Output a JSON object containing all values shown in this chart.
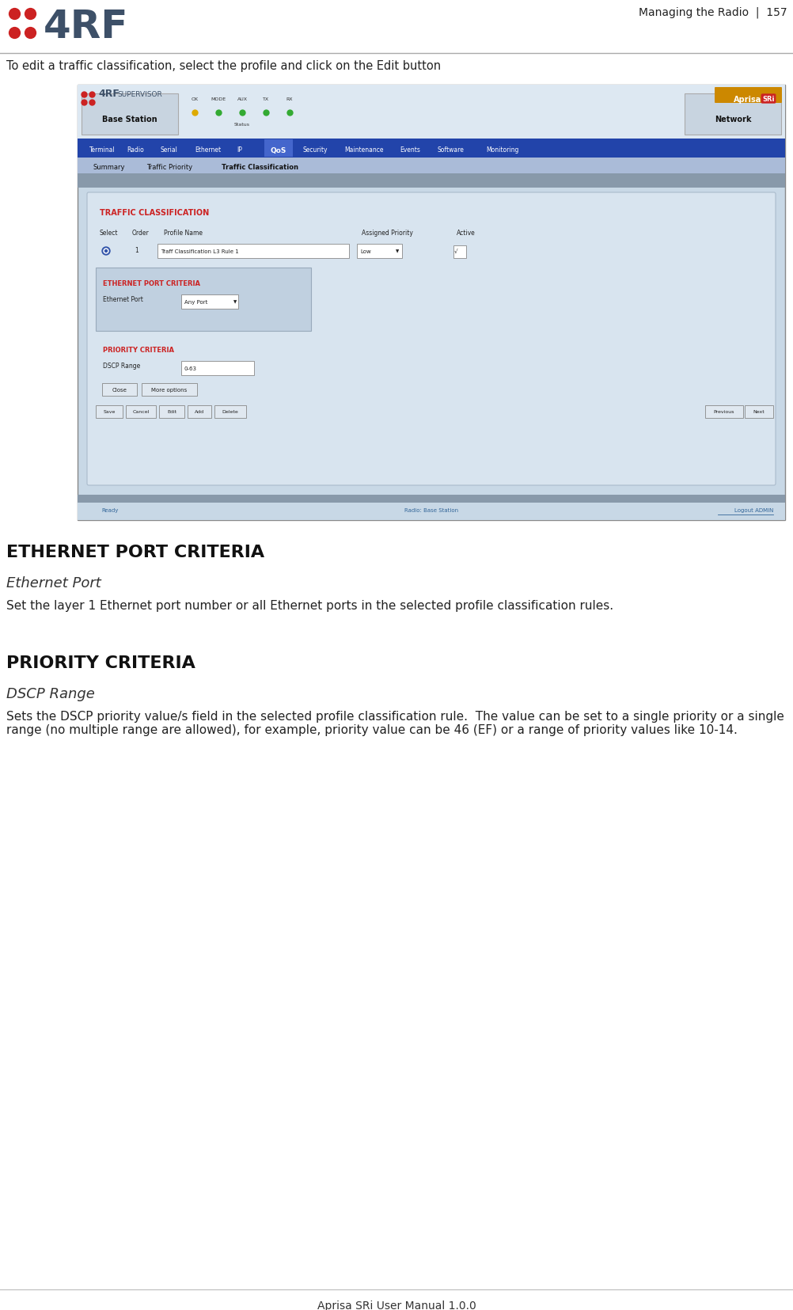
{
  "page_width": 10.03,
  "page_height": 16.56,
  "bg_color": "#ffffff",
  "header_right_text": "Managing the Radio  |  157",
  "intro_text": "To edit a traffic classification, select the profile and click on the Edit button",
  "section1_title": "ETHERNET PORT CRITERIA",
  "section1_subtitle": "Ethernet Port",
  "section1_body": "Set the layer 1 Ethernet port number or all Ethernet ports in the selected profile classification rules.",
  "section2_title": "PRIORITY CRITERIA",
  "section2_subtitle": "DSCP Range",
  "section2_body": "Sets the DSCP priority value/s field in the selected profile classification rule.  The value can be set to a single priority or a single range (no multiple range are allowed), for example, priority value can be 46 (EF) or a range of priority values like 10-14.",
  "footer_text": "Aprisa SRi User Manual 1.0.0",
  "ss_bg": "#c8d8e6",
  "ss_hdr_bg": "#dde8f2",
  "ss_nav_bg": "#2244aa",
  "ss_subnav_bg": "#aabbd8",
  "ss_gray_bar": "#8899aa",
  "ss_content_bg": "#c8d8e6",
  "ss_panel_bg": "#d8e4ef",
  "ss_inner_bg": "#c0d0e0",
  "ss_red": "#cc2222",
  "ss_border": "#999999",
  "ss_status_bg": "#8899aa",
  "ss_status_text_bg": "#c8d8e6"
}
